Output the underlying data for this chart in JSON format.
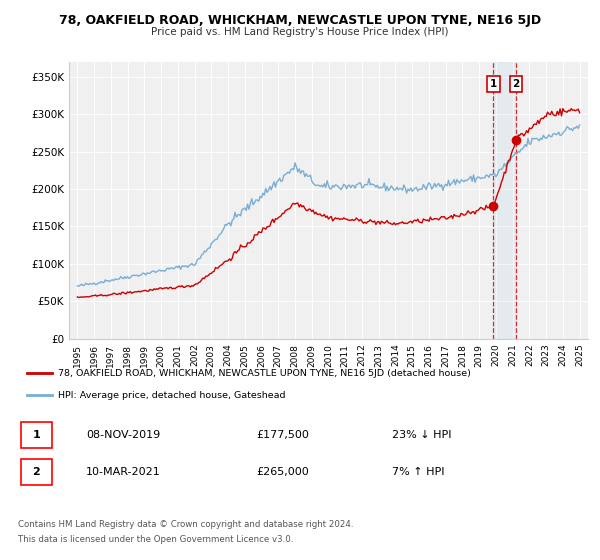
{
  "title": "78, OAKFIELD ROAD, WHICKHAM, NEWCASTLE UPON TYNE, NE16 5JD",
  "subtitle": "Price paid vs. HM Land Registry's House Price Index (HPI)",
  "legend_line1": "78, OAKFIELD ROAD, WHICKHAM, NEWCASTLE UPON TYNE, NE16 5JD (detached house)",
  "legend_line2": "HPI: Average price, detached house, Gateshead",
  "annotation1_date": "08-NOV-2019",
  "annotation1_price": "£177,500",
  "annotation1_hpi": "23% ↓ HPI",
  "annotation2_date": "10-MAR-2021",
  "annotation2_price": "£265,000",
  "annotation2_hpi": "7% ↑ HPI",
  "footer1": "Contains HM Land Registry data © Crown copyright and database right 2024.",
  "footer2": "This data is licensed under the Open Government Licence v3.0.",
  "ylabel_ticks": [
    "£0",
    "£50K",
    "£100K",
    "£150K",
    "£200K",
    "£250K",
    "£300K",
    "£350K"
  ],
  "ytick_vals": [
    0,
    50000,
    100000,
    150000,
    200000,
    250000,
    300000,
    350000
  ],
  "xlim": [
    1994.5,
    2025.5
  ],
  "ylim": [
    0,
    370000
  ],
  "red_color": "#cc0000",
  "blue_color": "#7aadd4",
  "background_color": "#ffffff",
  "plot_bg_color": "#f0f0f0",
  "marker1_x": 2019.85,
  "marker1_y": 177500,
  "marker2_x": 2021.19,
  "marker2_y": 265000,
  "vline1_x": 2019.85,
  "vline2_x": 2021.19
}
